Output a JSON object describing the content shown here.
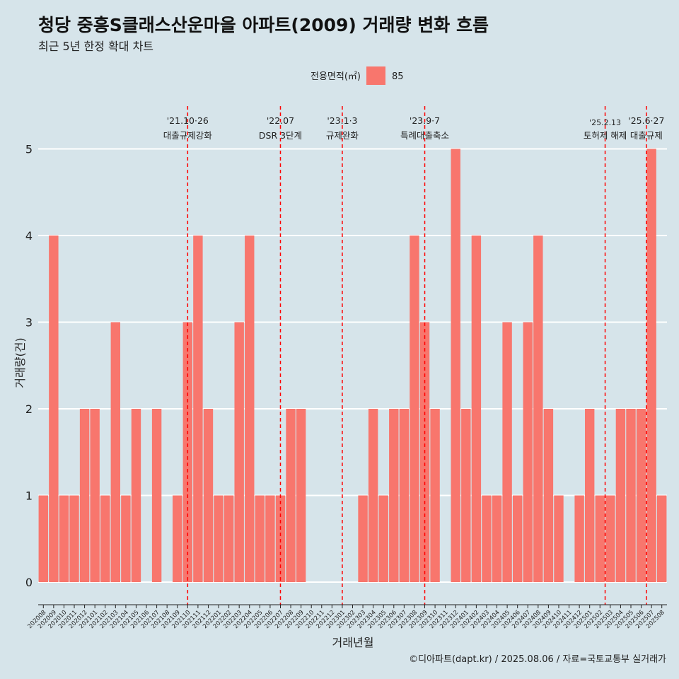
{
  "title": "청당 중흥S클래스산운마을 아파트(2009) 거래량 변화 흐름",
  "subtitle": "최근 5년 한정 확대 차트",
  "caption": "©디아파트(dapt.kr) / 2025.08.06 / 자료=국토교통부 실거래가",
  "colors": {
    "bar": "#f8766d",
    "background": "#d6e4ea",
    "event_line": "#ff0000",
    "grid": "#ffffff"
  },
  "chart_data": {
    "type": "bar",
    "xlabel": "거래년월",
    "ylabel": "거래량(건)",
    "ylim": [
      0,
      5
    ],
    "yticks": [
      0,
      1,
      2,
      3,
      4,
      5
    ],
    "grid": true,
    "legend": {
      "title": "전용면적(㎡)",
      "position": "top",
      "entries": [
        "85"
      ]
    },
    "series": [
      {
        "name": "85"
      }
    ],
    "categories": [
      "202008",
      "202009",
      "202010",
      "202011",
      "202012",
      "202101",
      "202102",
      "202103",
      "202104",
      "202105",
      "202106",
      "202107",
      "202108",
      "202109",
      "202110",
      "202111",
      "202112",
      "202201",
      "202202",
      "202203",
      "202204",
      "202205",
      "202206",
      "202207",
      "202208",
      "202209",
      "202210",
      "202211",
      "202212",
      "202301",
      "202302",
      "202303",
      "202304",
      "202305",
      "202306",
      "202307",
      "202308",
      "202309",
      "202310",
      "202311",
      "202312",
      "202401",
      "202402",
      "202403",
      "202404",
      "202405",
      "202406",
      "202407",
      "202408",
      "202409",
      "202410",
      "202411",
      "202412",
      "202501",
      "202502",
      "202503",
      "202504",
      "202505",
      "202506",
      "202507",
      "202508"
    ],
    "values": [
      1,
      4,
      1,
      1,
      2,
      2,
      1,
      3,
      1,
      2,
      0,
      2,
      0,
      1,
      3,
      4,
      2,
      1,
      1,
      3,
      4,
      1,
      1,
      1,
      2,
      2,
      0,
      0,
      0,
      0,
      0,
      1,
      2,
      1,
      2,
      2,
      4,
      3,
      2,
      0,
      5,
      2,
      4,
      1,
      1,
      3,
      1,
      3,
      4,
      2,
      1,
      0,
      1,
      2,
      1,
      1,
      2,
      2,
      2,
      5,
      1
    ],
    "events": [
      {
        "date": "'21.10·26",
        "label": "대출규제강화",
        "at": 14
      },
      {
        "date": "'22.07",
        "label": "DSR 3단계",
        "at": 23
      },
      {
        "date": "'23.1·3",
        "label": "규제완화",
        "at": 29
      },
      {
        "date": "'23.9·7",
        "label": "특례대출축소",
        "at": 37
      },
      {
        "date": "'25.2.13",
        "label": "토허제 해제",
        "at": 54.5
      },
      {
        "date": "'25.6·27",
        "label": "대출규제",
        "at": 58.5
      }
    ]
  }
}
